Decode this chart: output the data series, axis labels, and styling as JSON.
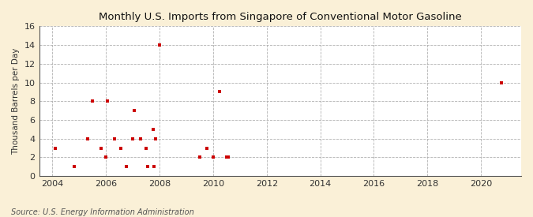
{
  "title": "Monthly U.S. Imports from Singapore of Conventional Motor Gasoline",
  "ylabel": "Thousand Barrels per Day",
  "source": "Source: U.S. Energy Information Administration",
  "figure_bg_color": "#faf0d7",
  "plot_bg_color": "#ffffff",
  "marker_color": "#cc0000",
  "xlim": [
    2003.5,
    2021.5
  ],
  "ylim": [
    0,
    16
  ],
  "yticks": [
    0,
    2,
    4,
    6,
    8,
    10,
    12,
    14,
    16
  ],
  "xticks": [
    2004,
    2006,
    2008,
    2010,
    2012,
    2014,
    2016,
    2018,
    2020
  ],
  "data_points": [
    [
      2004.1,
      3
    ],
    [
      2004.8,
      1
    ],
    [
      2005.3,
      4
    ],
    [
      2005.5,
      8
    ],
    [
      2005.8,
      3
    ],
    [
      2006.0,
      2
    ],
    [
      2006.05,
      8
    ],
    [
      2006.3,
      4
    ],
    [
      2006.55,
      3
    ],
    [
      2006.75,
      1
    ],
    [
      2007.0,
      4
    ],
    [
      2007.05,
      7
    ],
    [
      2007.3,
      4
    ],
    [
      2007.5,
      3
    ],
    [
      2007.55,
      1
    ],
    [
      2007.75,
      5
    ],
    [
      2007.8,
      1
    ],
    [
      2007.85,
      4
    ],
    [
      2008.0,
      14
    ],
    [
      2009.5,
      2
    ],
    [
      2009.75,
      3
    ],
    [
      2010.0,
      2
    ],
    [
      2010.25,
      9
    ],
    [
      2010.5,
      2
    ],
    [
      2010.55,
      2
    ],
    [
      2020.75,
      10
    ]
  ]
}
